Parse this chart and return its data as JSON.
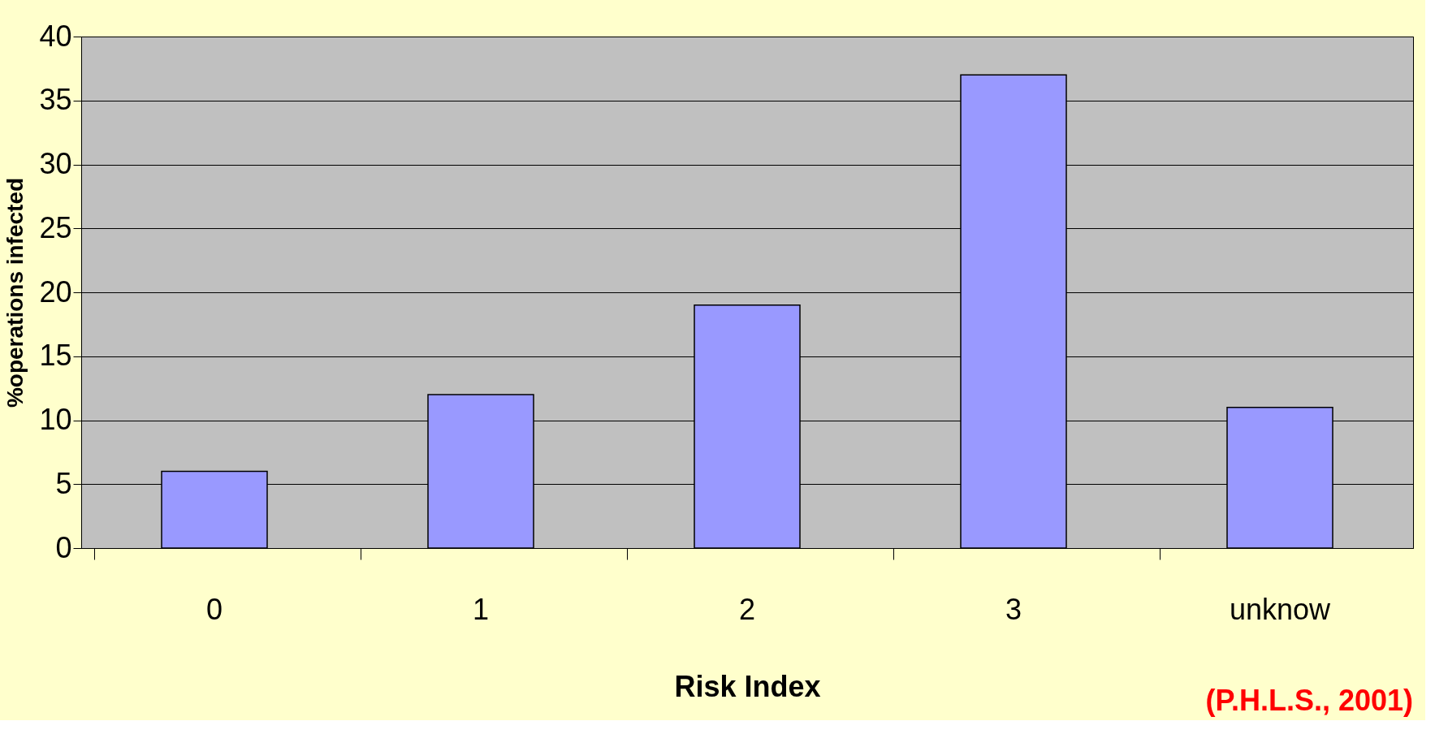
{
  "chart_data": {
    "type": "bar",
    "xlabel": "Risk Index",
    "ylabel": "%operations infected",
    "categories": [
      "0",
      "1",
      "2",
      "3",
      "unknow"
    ],
    "values": [
      6,
      12,
      19,
      37,
      11
    ],
    "color": "#9999ff",
    "ylim": [
      0,
      40
    ],
    "yticks": [
      0,
      5,
      10,
      15,
      20,
      25,
      30,
      35,
      40
    ],
    "grid": "y",
    "annotations": [
      "(P.H.L.S., 2001)"
    ]
  }
}
